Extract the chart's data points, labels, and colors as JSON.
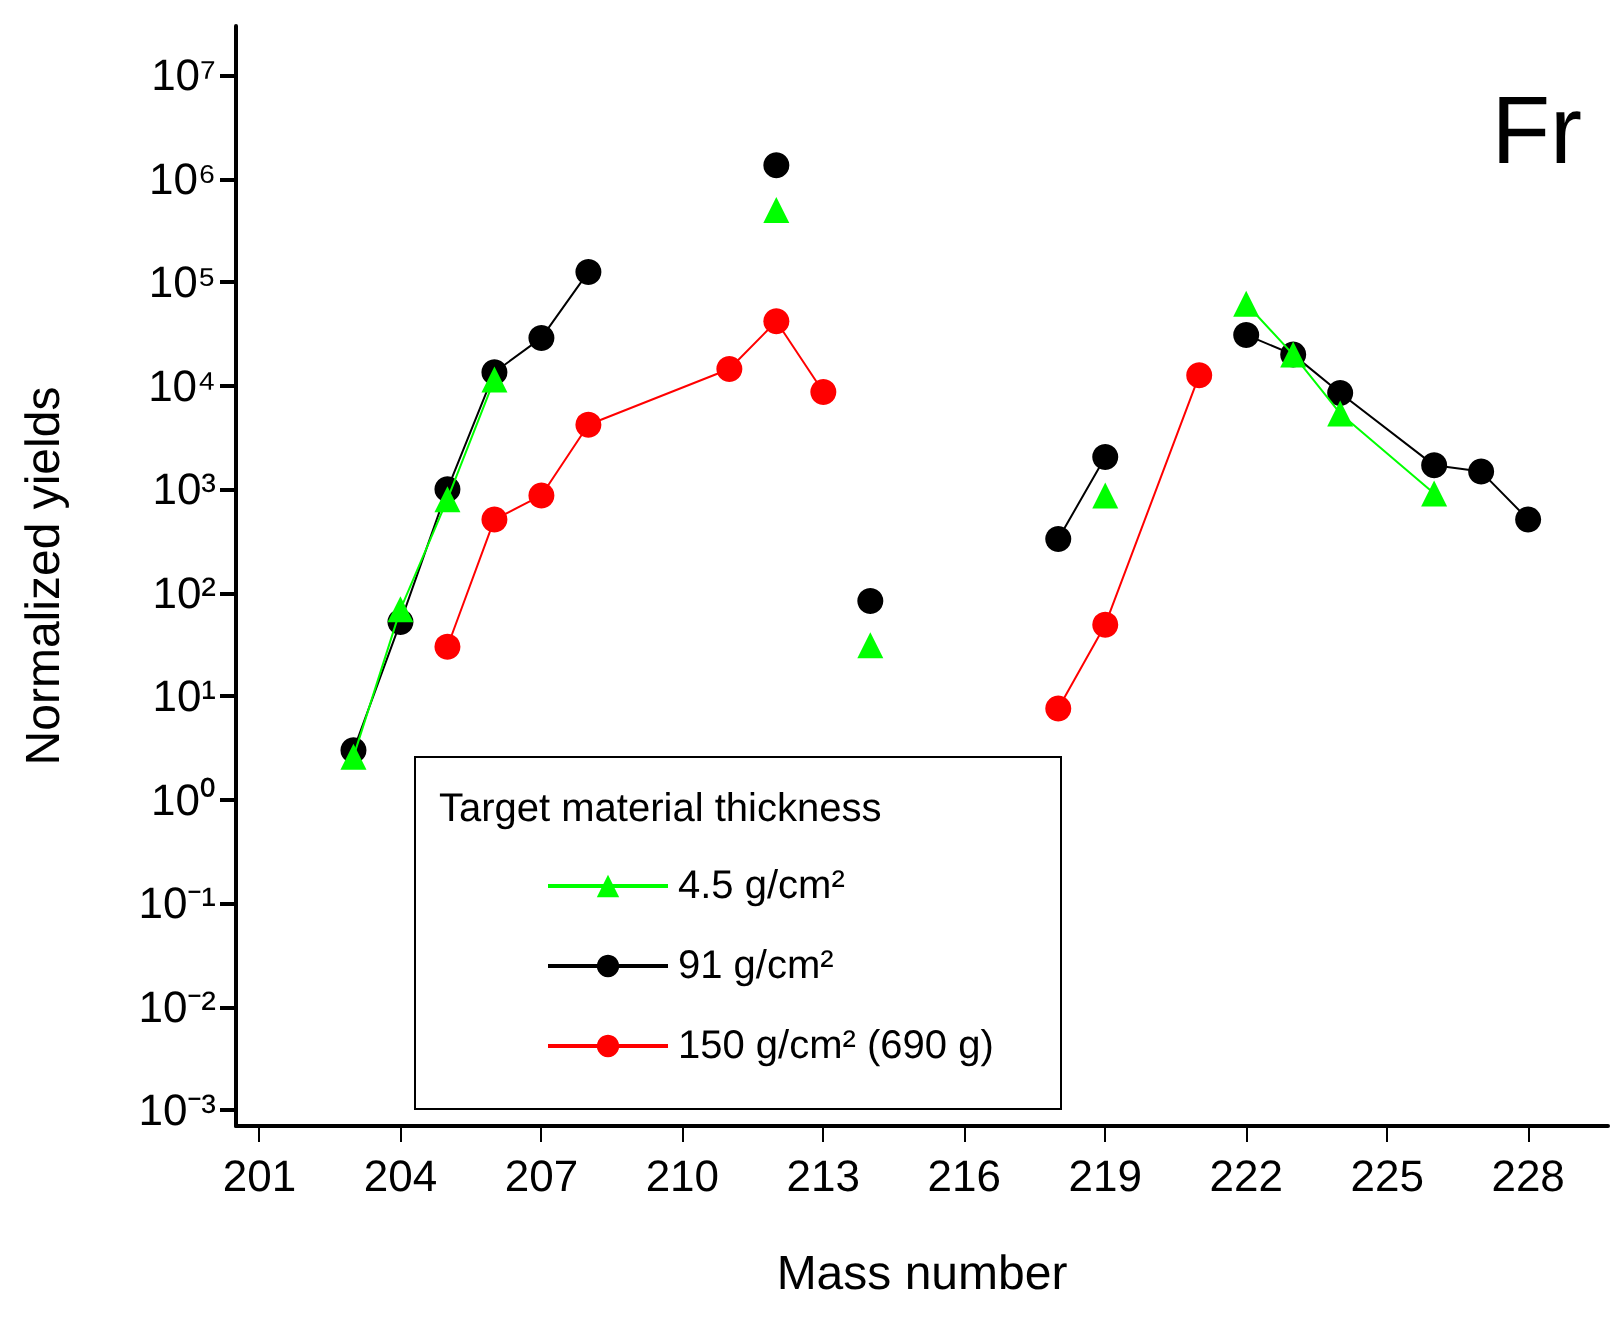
{
  "chart_data": {
    "type": "line",
    "xlabel": "Mass number",
    "ylabel": "Normalized yields",
    "legend_title": "Target material thickness",
    "annotations": [
      "Fr"
    ],
    "xlim": [
      200.5,
      229.7
    ],
    "xticks": [
      201,
      204,
      207,
      210,
      213,
      216,
      219,
      222,
      225,
      228
    ],
    "ylim": [
      0.0007,
      30000000
    ],
    "log": "y",
    "yticks": [
      {
        "value": 0.001,
        "label": "10⁻³"
      },
      {
        "value": 0.01,
        "label": "10⁻²"
      },
      {
        "value": 0.1,
        "label": "10⁻¹"
      },
      {
        "value": 1,
        "label": "10⁰"
      },
      {
        "value": 10,
        "label": "10¹"
      },
      {
        "value": 100,
        "label": "10²"
      },
      {
        "value": 1000,
        "label": "10³"
      },
      {
        "value": 10000,
        "label": "10⁴"
      },
      {
        "value": 100000,
        "label": "10⁵"
      },
      {
        "value": 1000000,
        "label": "10⁶"
      },
      {
        "value": 10000000,
        "label": "10⁷"
      }
    ],
    "grid": false,
    "legend": "bottom left",
    "marker": "circle",
    "line_style": "solid",
    "series": [
      {
        "name": "4.5 g/cm²",
        "color": "#00ff00",
        "marker": "triangle",
        "x": [
          203,
          204,
          205,
          206,
          209,
          212,
          213,
          214,
          216,
          219,
          220,
          222,
          223,
          224,
          226
        ],
        "values": [
          2.6,
          69,
          800,
          11500,
          null,
          500000,
          null,
          31,
          null,
          870,
          null,
          62000,
          20000,
          5400,
          910
        ]
      },
      {
        "name": "91 g/cm²",
        "color": "#000000",
        "x": [
          203,
          204,
          205,
          206,
          207,
          208,
          210,
          212,
          213,
          214,
          216,
          218,
          219,
          220,
          222,
          223,
          224,
          226,
          227,
          228
        ],
        "values": [
          3,
          52,
          1000,
          13500,
          29000,
          126000,
          null,
          1350000,
          null,
          83,
          null,
          330,
          2050,
          null,
          31000,
          20000,
          8500,
          1700,
          1480,
          510
        ]
      },
      {
        "name": "150 g/cm² (690 g)",
        "color": "#ff0000",
        "x": [
          205,
          206,
          207,
          208,
          211,
          212,
          213,
          215,
          218,
          219,
          221
        ],
        "values": [
          30,
          510,
          870,
          4200,
          14500,
          42000,
          8700,
          null,
          7.6,
          49,
          12600
        ]
      }
    ]
  }
}
